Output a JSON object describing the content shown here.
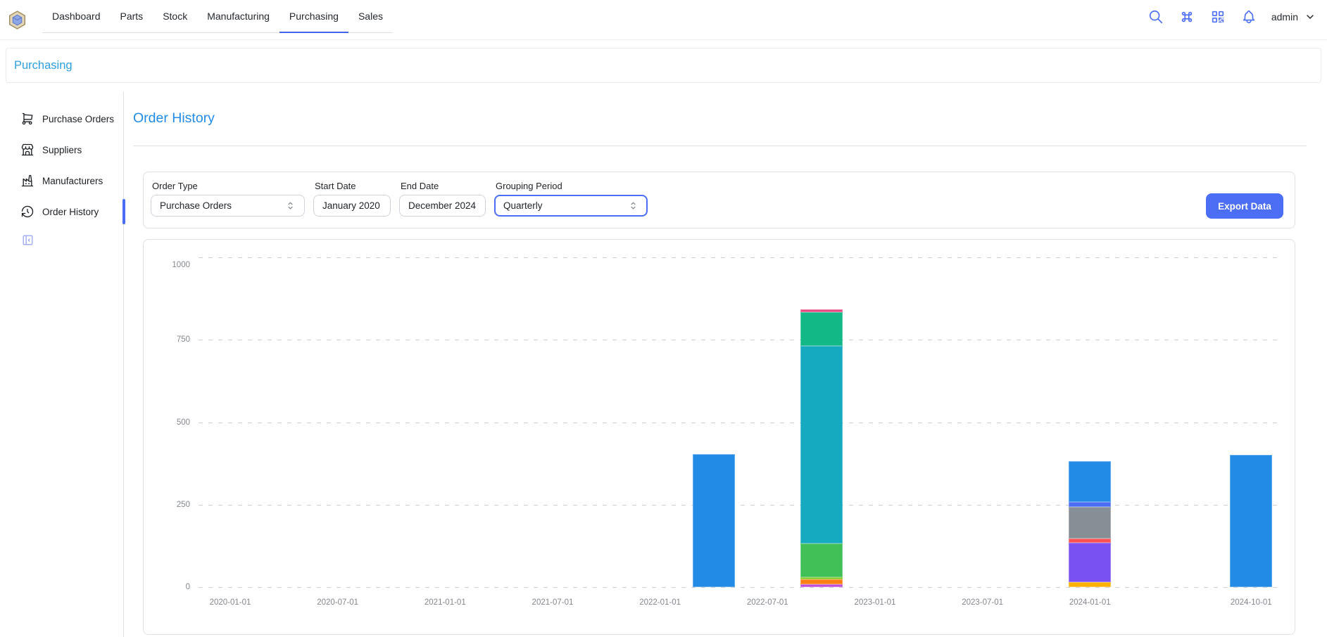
{
  "navbar": {
    "tabs": [
      {
        "label": "Dashboard"
      },
      {
        "label": "Parts"
      },
      {
        "label": "Stock"
      },
      {
        "label": "Manufacturing"
      },
      {
        "label": "Purchasing",
        "active": true
      },
      {
        "label": "Sales"
      }
    ],
    "actions": [
      {
        "icon": "search-icon"
      },
      {
        "icon": "command-palette-icon"
      },
      {
        "icon": "qr-scan-icon"
      },
      {
        "icon": "notifications-bell-icon"
      }
    ],
    "username": "admin"
  },
  "breadcrumb": {
    "title": "Purchasing"
  },
  "sidebar": {
    "items": [
      {
        "label": "Purchase Orders",
        "icon": "shopping-cart-icon"
      },
      {
        "label": "Suppliers",
        "icon": "storefront-icon"
      },
      {
        "label": "Manufacturers",
        "icon": "factory-icon"
      },
      {
        "label": "Order History",
        "icon": "history-icon",
        "active": true
      }
    ],
    "collapse_icon": "sidebar-collapse-icon"
  },
  "main": {
    "title": "Order History",
    "filters": {
      "order_type": {
        "label": "Order Type",
        "value": "Purchase Orders"
      },
      "start_date": {
        "label": "Start Date",
        "value": "January 2020"
      },
      "end_date": {
        "label": "End Date",
        "value": "December 2024"
      },
      "grouping_period": {
        "label": "Grouping Period",
        "value": "Quarterly",
        "focused": true
      },
      "export_label": "Export Data"
    }
  },
  "colors": {
    "accent_indigo": "#4c6ef5",
    "tab_underline": "#4263eb",
    "title_blue": "#228be6",
    "breadcrumb_blue": "#2f9fe0"
  },
  "chart_data": {
    "type": "bar",
    "stacked": true,
    "title": "",
    "xlabel": "",
    "ylabel": "",
    "ylim": [
      0,
      1000
    ],
    "yticks": [
      0,
      250,
      500,
      750,
      1000
    ],
    "grid": "dashed-horizontal",
    "legend": "none",
    "categories_note": "quarterly buckets, index 0 = 2020-01-01 through index 19 = 2024-10-01",
    "xticks": [
      {
        "index": 0,
        "label": "2020-01-01"
      },
      {
        "index": 2,
        "label": "2020-07-01"
      },
      {
        "index": 4,
        "label": "2021-01-01"
      },
      {
        "index": 6,
        "label": "2021-07-01"
      },
      {
        "index": 8,
        "label": "2022-01-01"
      },
      {
        "index": 10,
        "label": "2022-07-01"
      },
      {
        "index": 12,
        "label": "2023-01-01"
      },
      {
        "index": 14,
        "label": "2023-07-01"
      },
      {
        "index": 16,
        "label": "2024-01-01"
      },
      {
        "index": 19,
        "label": "2024-10-01"
      }
    ],
    "bars": [
      {
        "index": 9,
        "quarter": "2022-04-01",
        "total": 404,
        "segments": [
          {
            "color": "#228be6",
            "value": 404
          }
        ]
      },
      {
        "index": 11,
        "quarter": "2022-10-01",
        "total": 843,
        "segments": [
          {
            "color": "#be4bdb",
            "value": 8
          },
          {
            "color": "#fd7e14",
            "value": 15
          },
          {
            "color": "#82c91e",
            "value": 6
          },
          {
            "color": "#40c057",
            "value": 103
          },
          {
            "color": "#15aabf",
            "value": 600
          },
          {
            "color": "#12b886",
            "value": 103
          },
          {
            "color": "#e64980",
            "value": 8
          }
        ]
      },
      {
        "index": 16,
        "quarter": "2024-01-01",
        "total": 381,
        "segments": [
          {
            "color": "#fab005",
            "value": 15
          },
          {
            "color": "#7950f2",
            "value": 120
          },
          {
            "color": "#fa5252",
            "value": 13
          },
          {
            "color": "#868e96",
            "value": 96
          },
          {
            "color": "#4c6ef5",
            "value": 15
          },
          {
            "color": "#228be6",
            "value": 122
          }
        ]
      },
      {
        "index": 19,
        "quarter": "2024-10-01",
        "total": 400,
        "segments": [
          {
            "color": "#228be6",
            "value": 400
          }
        ]
      }
    ]
  }
}
